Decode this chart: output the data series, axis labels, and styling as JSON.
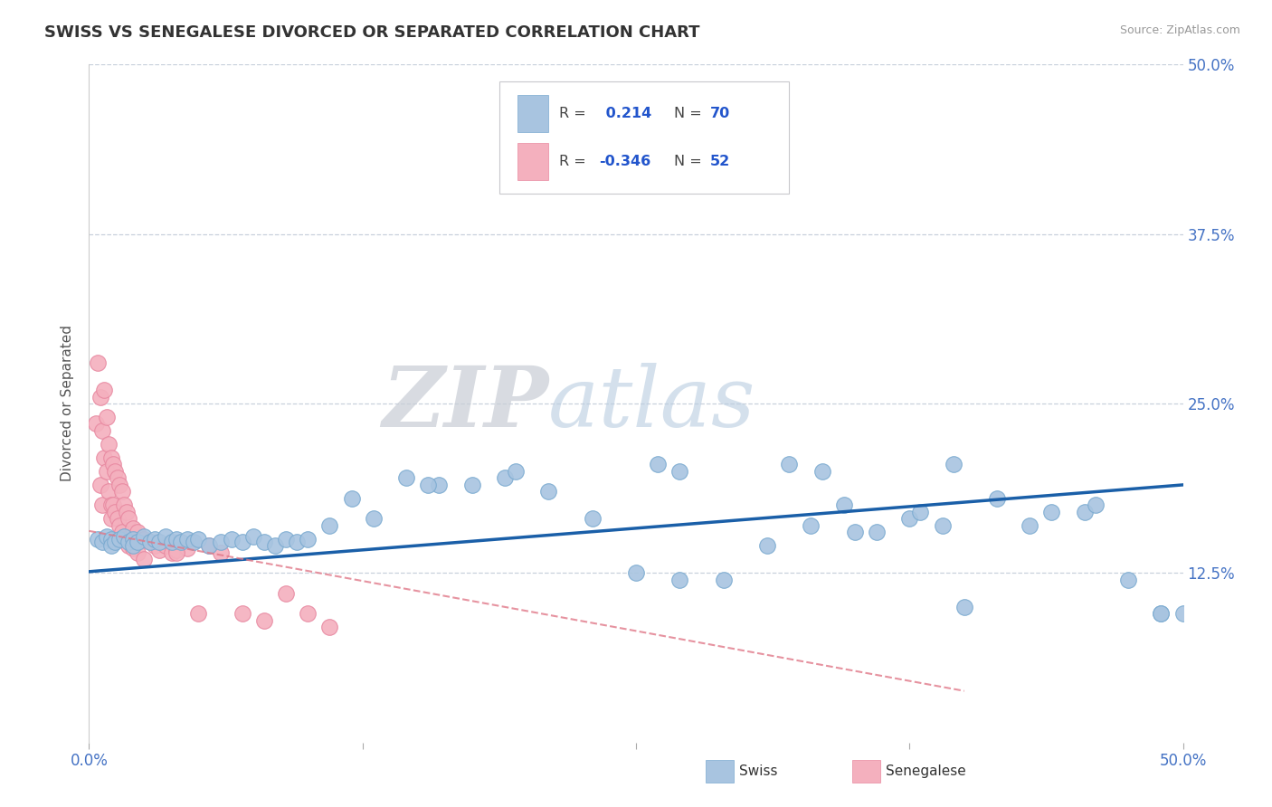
{
  "title": "SWISS VS SENEGALESE DIVORCED OR SEPARATED CORRELATION CHART",
  "source": "Source: ZipAtlas.com",
  "ylabel": "Divorced or Separated",
  "xlim": [
    0.0,
    0.5
  ],
  "ylim": [
    0.0,
    0.5
  ],
  "swiss_R": 0.214,
  "swiss_N": 70,
  "senegalese_R": -0.346,
  "senegalese_N": 52,
  "swiss_color": "#a8c4e0",
  "swiss_edge_color": "#7aaad0",
  "senegalese_color": "#f4b0be",
  "senegalese_edge_color": "#e888a0",
  "swiss_line_color": "#1a5fa8",
  "senegalese_line_color": "#e07888",
  "background_color": "#ffffff",
  "title_fontsize": 13,
  "grid_color": "#c8d0dc",
  "tick_color": "#4472c4",
  "swiss_x": [
    0.004,
    0.006,
    0.008,
    0.01,
    0.01,
    0.012,
    0.014,
    0.016,
    0.018,
    0.02,
    0.02,
    0.022,
    0.025,
    0.028,
    0.03,
    0.032,
    0.035,
    0.038,
    0.04,
    0.042,
    0.045,
    0.048,
    0.05,
    0.055,
    0.06,
    0.065,
    0.07,
    0.075,
    0.08,
    0.085,
    0.09,
    0.095,
    0.1,
    0.11,
    0.12,
    0.13,
    0.145,
    0.16,
    0.175,
    0.19,
    0.21,
    0.23,
    0.25,
    0.27,
    0.29,
    0.31,
    0.33,
    0.35,
    0.36,
    0.375,
    0.39,
    0.4,
    0.415,
    0.43,
    0.44,
    0.455,
    0.46,
    0.475,
    0.49,
    0.5,
    0.32,
    0.38,
    0.395,
    0.335,
    0.27,
    0.26,
    0.195,
    0.155,
    0.345,
    0.49
  ],
  "swiss_y": [
    0.15,
    0.148,
    0.152,
    0.15,
    0.145,
    0.148,
    0.15,
    0.152,
    0.148,
    0.15,
    0.145,
    0.148,
    0.152,
    0.148,
    0.15,
    0.148,
    0.152,
    0.148,
    0.15,
    0.148,
    0.15,
    0.148,
    0.15,
    0.145,
    0.148,
    0.15,
    0.148,
    0.152,
    0.148,
    0.145,
    0.15,
    0.148,
    0.15,
    0.16,
    0.18,
    0.165,
    0.195,
    0.19,
    0.19,
    0.195,
    0.185,
    0.165,
    0.125,
    0.12,
    0.12,
    0.145,
    0.16,
    0.155,
    0.155,
    0.165,
    0.16,
    0.1,
    0.18,
    0.16,
    0.17,
    0.17,
    0.175,
    0.12,
    0.095,
    0.095,
    0.205,
    0.17,
    0.205,
    0.2,
    0.2,
    0.205,
    0.2,
    0.19,
    0.175,
    0.095
  ],
  "senegalese_x": [
    0.003,
    0.004,
    0.005,
    0.005,
    0.006,
    0.006,
    0.007,
    0.007,
    0.008,
    0.008,
    0.009,
    0.009,
    0.01,
    0.01,
    0.01,
    0.011,
    0.011,
    0.012,
    0.012,
    0.013,
    0.013,
    0.014,
    0.014,
    0.015,
    0.015,
    0.016,
    0.016,
    0.017,
    0.018,
    0.018,
    0.02,
    0.02,
    0.022,
    0.022,
    0.025,
    0.025,
    0.028,
    0.03,
    0.032,
    0.035,
    0.038,
    0.04,
    0.045,
    0.05,
    0.055,
    0.06,
    0.07,
    0.08,
    0.09,
    0.1,
    0.11,
    0.04
  ],
  "senegalese_y": [
    0.235,
    0.28,
    0.255,
    0.19,
    0.23,
    0.175,
    0.26,
    0.21,
    0.24,
    0.2,
    0.22,
    0.185,
    0.21,
    0.175,
    0.165,
    0.205,
    0.175,
    0.2,
    0.17,
    0.195,
    0.165,
    0.19,
    0.16,
    0.185,
    0.155,
    0.175,
    0.15,
    0.17,
    0.165,
    0.145,
    0.158,
    0.143,
    0.155,
    0.14,
    0.15,
    0.135,
    0.148,
    0.145,
    0.142,
    0.145,
    0.14,
    0.142,
    0.143,
    0.095,
    0.145,
    0.14,
    0.095,
    0.09,
    0.11,
    0.095,
    0.085,
    0.14
  ],
  "swiss_line_x0": 0.0,
  "swiss_line_y0": 0.126,
  "swiss_line_x1": 0.5,
  "swiss_line_y1": 0.19,
  "sene_line_x0": 0.0,
  "sene_line_y0": 0.156,
  "sene_line_x1": 0.4,
  "sene_line_y1": 0.038
}
